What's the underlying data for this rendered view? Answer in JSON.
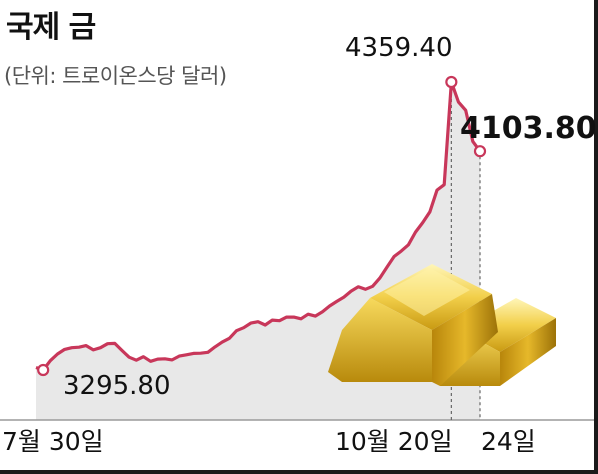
{
  "title": "국제 금",
  "subtitle": "(단위: 트로이온스당 달러)",
  "colors": {
    "line": "#c8375a",
    "area": "#e8e8e8",
    "axis": "#9a9a9a",
    "text": "#111111"
  },
  "chart_data": {
    "type": "area",
    "title": "국제 금",
    "ylabel": "트로이온스당 달러",
    "x_labels": [
      "7월 30일",
      "10월 20일",
      "24일"
    ],
    "x": [
      "07-30",
      "07-31",
      "08-01",
      "08-04",
      "08-05",
      "08-06",
      "08-07",
      "08-08",
      "08-11",
      "08-12",
      "08-13",
      "08-14",
      "08-15",
      "08-18",
      "08-19",
      "08-20",
      "08-21",
      "08-22",
      "08-25",
      "08-26",
      "08-27",
      "08-28",
      "08-29",
      "09-01",
      "09-02",
      "09-03",
      "09-04",
      "09-05",
      "09-08",
      "09-09",
      "09-10",
      "09-11",
      "09-12",
      "09-15",
      "09-16",
      "09-17",
      "09-18",
      "09-19",
      "09-22",
      "09-23",
      "09-24",
      "09-25",
      "09-26",
      "09-29",
      "09-30",
      "10-01",
      "10-02",
      "10-03",
      "10-06",
      "10-07",
      "10-08",
      "10-09",
      "10-10",
      "10-13",
      "10-14",
      "10-15",
      "10-16",
      "10-17",
      "10-20",
      "10-21",
      "10-22",
      "10-23",
      "10-24"
    ],
    "values": [
      3305,
      3295.8,
      3330,
      3355,
      3372,
      3378,
      3380,
      3386,
      3370,
      3378,
      3393,
      3394,
      3368,
      3343,
      3332,
      3345,
      3328,
      3336,
      3337,
      3333,
      3347,
      3352,
      3357,
      3358,
      3361,
      3381,
      3399,
      3413,
      3441,
      3452,
      3469,
      3474,
      3462,
      3480,
      3478,
      3491,
      3491,
      3485,
      3502,
      3495,
      3511,
      3532,
      3549,
      3565,
      3587,
      3603,
      3594,
      3605,
      3635,
      3675,
      3715,
      3735,
      3758,
      3805,
      3840,
      3880,
      3960,
      3980,
      4359.4,
      4285,
      4255,
      4140,
      4103.8
    ],
    "annotations": [
      {
        "label": "3295.80",
        "value": 3295.8
      },
      {
        "label": "4359.40",
        "value": 4359.4
      },
      {
        "label": "4103.80",
        "value": 4103.8
      }
    ]
  }
}
